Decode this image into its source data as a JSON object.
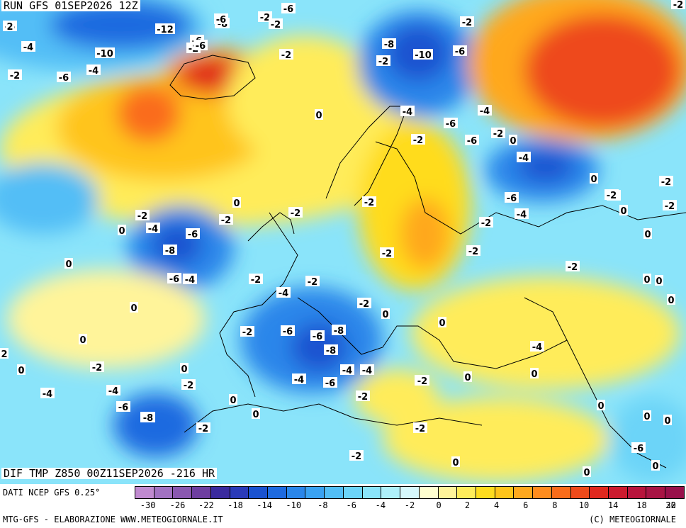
{
  "header": {
    "run": "RUN GFS 01SEP2026 12Z",
    "product": "DIF TMP Z850 00Z11SEP2026 -216 HR"
  },
  "footer": {
    "source": "DATI NCEP GFS 0.25°",
    "credit_left": "MTG-GFS - ELABORAZIONE WWW.METEOGIORNALE.IT",
    "credit_right": "(C) METEOGIORNALE"
  },
  "legend": {
    "tick_labels": [
      "-30",
      "-26",
      "-22",
      "-18",
      "-14",
      "-10",
      "-8",
      "-6",
      "-4",
      "-2",
      "0",
      "2",
      "4",
      "6",
      "8",
      "10",
      "14",
      "18",
      "22",
      "30"
    ],
    "colors": [
      "#c08ad0",
      "#a272c2",
      "#8a58b0",
      "#6e3ea0",
      "#3a2a9e",
      "#2a3ab8",
      "#1a52d0",
      "#1e6ae0",
      "#2a86ea",
      "#3aa2f2",
      "#52bef6",
      "#6cd4f8",
      "#8ae4fa",
      "#aef0fa",
      "#d6f8fc",
      "#ffffd0",
      "#fff49a",
      "#ffec5a",
      "#ffdc1e",
      "#ffc41a",
      "#ffa81e",
      "#ff8c1e",
      "#fa6c1a",
      "#ee4a1a",
      "#e0281e",
      "#cc1a2e",
      "#b8143c",
      "#a81444",
      "#98104a"
    ]
  },
  "map_labels": [
    "-6",
    "-10",
    "-12",
    "-6",
    "-8",
    "-2",
    "-6",
    "-2",
    "-4",
    "-2",
    "-10",
    "-6",
    "-4",
    "-2",
    "-6",
    "-8",
    "-2",
    "-6",
    "-10",
    "-6",
    "-2",
    "0",
    "-6",
    "-2",
    "-8",
    "-4",
    "-2",
    "-4",
    "-6",
    "-4",
    "-2",
    "0",
    "-6",
    "0",
    "-4",
    "-2",
    "0",
    "-2",
    "-4",
    "-8",
    "-2",
    "-2",
    "-6",
    "-6",
    "-2",
    "0",
    "-2",
    "0",
    "-2",
    "-2",
    "-2",
    "-4",
    "0",
    "-6",
    "-8",
    "-4",
    "-2",
    "-2",
    "0",
    "0",
    "-6",
    "-2",
    "0",
    "-2",
    "-2",
    "-2",
    "-4",
    "-2",
    "0",
    "0",
    "-2",
    "0",
    "0",
    "0",
    "-4",
    "-4",
    "0",
    "-6",
    "-6",
    "-8",
    "-4",
    "-6",
    "0",
    "2",
    "-2",
    "0",
    "0",
    "0",
    "-4",
    "-4",
    "-2",
    "0",
    "-2",
    "-2",
    "-6",
    "-2",
    "-2",
    "0",
    "-8",
    "-2",
    "0",
    "0",
    "0",
    "-2",
    "0",
    "0",
    "2"
  ]
}
